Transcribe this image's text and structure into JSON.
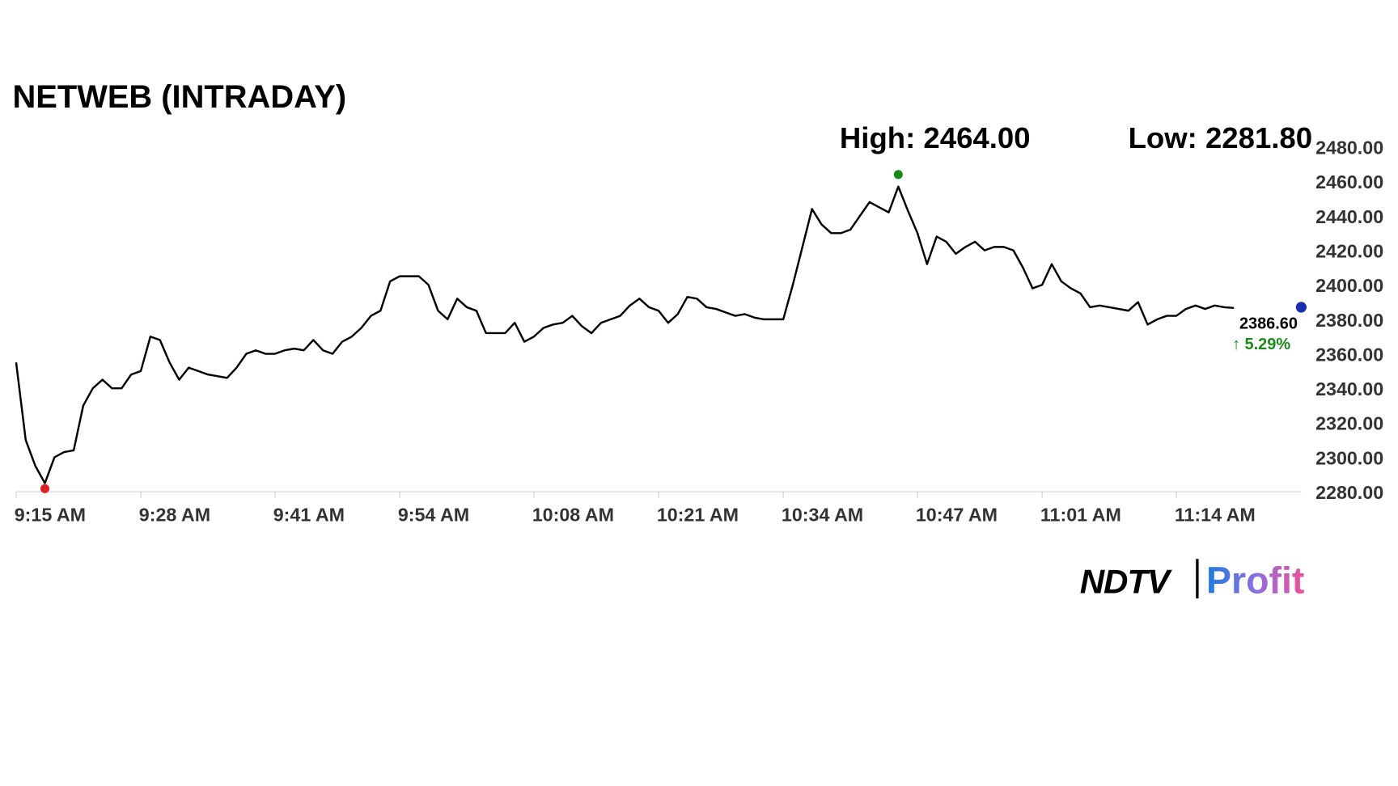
{
  "chart_data": {
    "type": "line",
    "title": "NETWEB (INTRADAY)",
    "annotations": {
      "high": "High: 2464.00",
      "low": "Low: 2281.80",
      "last": "2386.60",
      "change": "↑ 5.29%"
    },
    "high": 2464,
    "low": 2281.8,
    "color": "#000000",
    "categories": [
      "9:15 AM",
      null,
      null,
      null,
      null,
      null,
      null,
      null,
      null,
      null,
      null,
      null,
      null,
      "9:28 AM",
      null,
      null,
      null,
      null,
      null,
      null,
      null,
      null,
      null,
      null,
      null,
      null,
      null,
      "9:41 AM",
      null,
      null,
      null,
      null,
      null,
      null,
      null,
      null,
      null,
      null,
      null,
      null,
      "9:54 AM",
      null,
      null,
      null,
      null,
      null,
      null,
      null,
      null,
      null,
      null,
      null,
      null,
      null,
      "10:08 AM",
      null,
      null,
      null,
      null,
      null,
      null,
      null,
      null,
      null,
      null,
      null,
      null,
      "10:21 AM",
      null,
      null,
      null,
      null,
      null,
      null,
      null,
      null,
      null,
      null,
      null,
      null,
      "10:34 AM",
      null,
      null,
      null,
      null,
      null,
      null,
      null,
      null,
      null,
      null,
      null,
      null,
      null,
      "10:47 AM",
      null,
      null,
      null,
      null,
      null,
      null,
      null,
      null,
      null,
      null,
      null,
      null,
      "11:01 AM",
      null,
      null,
      null,
      null,
      null,
      null,
      null,
      null,
      null,
      null,
      null,
      null,
      null,
      "11:14 AM",
      null,
      null,
      null,
      null,
      null,
      null
    ],
    "values": [
      2355,
      2310,
      2295,
      2285,
      2300,
      2303,
      2304,
      2330,
      2340,
      2345,
      2340,
      2340,
      2348,
      2350,
      2370,
      2368,
      2355,
      2345,
      2352,
      2350,
      2348,
      2347,
      2346,
      2352,
      2360,
      2362,
      2360,
      2360,
      2362,
      2363,
      2362,
      2368,
      2362,
      2360,
      2367,
      2370,
      2375,
      2382,
      2385,
      2402,
      2405,
      2405,
      2405,
      2400,
      2385,
      2380,
      2392,
      2387,
      2385,
      2372,
      2372,
      2372,
      2378,
      2367,
      2370,
      2375,
      2377,
      2378,
      2382,
      2376,
      2372,
      2378,
      2380,
      2382,
      2388,
      2392,
      2387,
      2385,
      2378,
      2383,
      2393,
      2392,
      2387,
      2386,
      2384,
      2382,
      2383,
      2381,
      2380,
      2380,
      2380,
      2400,
      2422,
      2444,
      2435,
      2430,
      2430,
      2432,
      2440,
      2448,
      2445,
      2442,
      2457,
      2443,
      2430,
      2412,
      2428,
      2425,
      2418,
      2422,
      2425,
      2420,
      2422,
      2422,
      2420,
      2410,
      2398,
      2400,
      2412,
      2402,
      2398,
      2395,
      2387,
      2388,
      2387,
      2386,
      2385,
      2390,
      2377,
      2380,
      2382,
      2382,
      2386,
      2388,
      2386,
      2388,
      2387,
      2386.6
    ],
    "ylim": [
      2280,
      2480
    ],
    "yticks": [
      {
        "value": 2280,
        "label": "2280.00"
      },
      {
        "value": 2300,
        "label": "2300.00"
      },
      {
        "value": 2320,
        "label": "2320.00"
      },
      {
        "value": 2340,
        "label": "2340.00"
      },
      {
        "value": 2360,
        "label": "2360.00"
      },
      {
        "value": 2380,
        "label": "2380.00"
      },
      {
        "value": 2400,
        "label": "2400.00"
      },
      {
        "value": 2420,
        "label": "2420.00"
      },
      {
        "value": 2440,
        "label": "2440.00"
      },
      {
        "value": 2460,
        "label": "2460.00"
      },
      {
        "value": 2480,
        "label": "2480.00"
      }
    ],
    "grid": false,
    "logo": {
      "brand": "NDTV",
      "product": "Profit"
    }
  }
}
